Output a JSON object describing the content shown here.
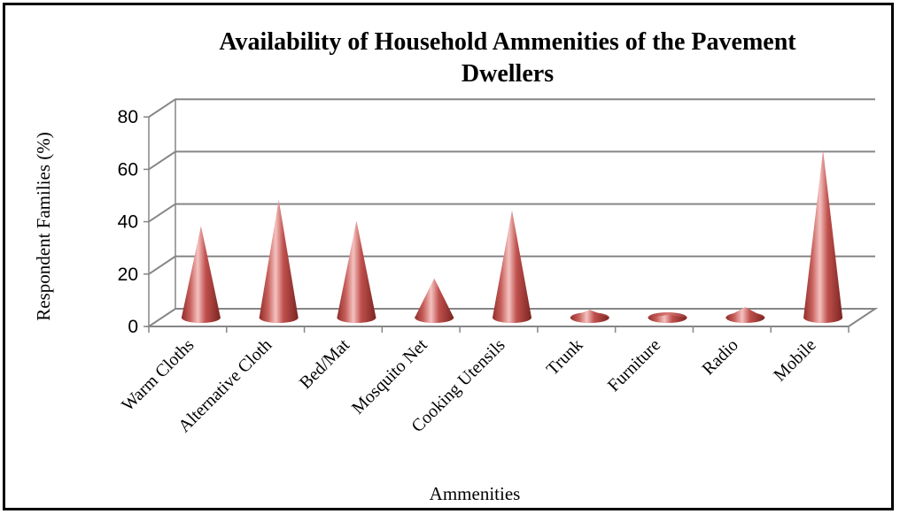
{
  "chart_data": {
    "type": "bar",
    "subtype": "3d-cone",
    "title": "Availability of Household Ammenities of the Pavement Dwellers",
    "title_lines": [
      "Availability of Household Ammenities of the Pavement",
      "Dwellers"
    ],
    "xlabel": "Ammenities",
    "ylabel": "Respondent Families (%)",
    "ylim": [
      0,
      80
    ],
    "yticks": [
      "0",
      "20",
      "40",
      "60",
      "80"
    ],
    "grid": true,
    "legend": "none",
    "categories": [
      "Warm Cloths",
      "Alternative Cloth",
      "Bed/Mat",
      "Mosquito Net",
      "Cooking Utensils",
      "Trunk",
      "Furniture",
      "Radio",
      "Mobile"
    ],
    "values": [
      35,
      45,
      37,
      15,
      41,
      3,
      1,
      4,
      64
    ],
    "colors": {
      "cone": "#c0504d",
      "cone_light": "#f2b8b6",
      "cone_dark": "#7a2522",
      "gridline": "#868686"
    }
  }
}
